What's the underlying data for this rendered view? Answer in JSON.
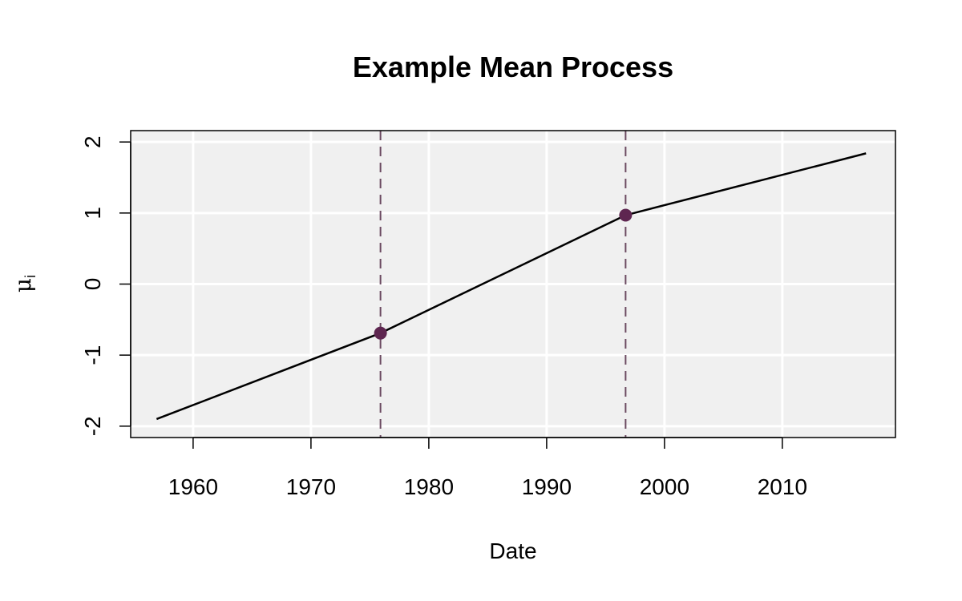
{
  "chart_data": {
    "type": "line",
    "title": "Example Mean Process",
    "xlabel": "Date",
    "ylabel": {
      "symbol": "μ",
      "subscript": "i"
    },
    "xlim": [
      1954.7,
      2019.6
    ],
    "ylim": [
      -2.16,
      2.16
    ],
    "x_ticks": [
      1960,
      1970,
      1980,
      1990,
      2000,
      2010
    ],
    "y_ticks": [
      -2,
      -1,
      0,
      1,
      2
    ],
    "grid": true,
    "series": [
      {
        "x": [
          1956.9,
          1975.9,
          1996.7,
          2017.1
        ],
        "y": [
          -1.9,
          -0.69,
          0.97,
          1.84
        ]
      }
    ],
    "changepoints": [
      {
        "x": 1975.9,
        "y": -0.69
      },
      {
        "x": 1996.7,
        "y": 0.97
      }
    ],
    "colors": {
      "panel_background": "#f0f0f0",
      "grid": "#ffffff",
      "line": "#000000",
      "changepoint_marker": "#5e2650",
      "changepoint_line": "#6b4a61"
    }
  }
}
